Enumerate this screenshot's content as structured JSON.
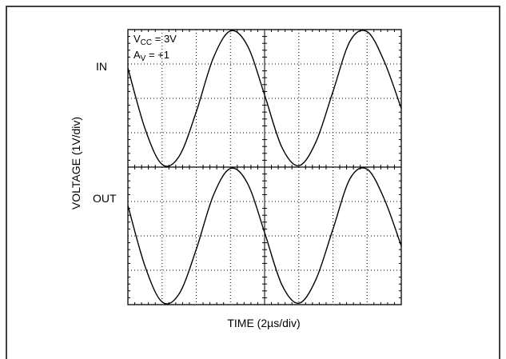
{
  "chart_data": {
    "type": "line",
    "title": "",
    "xlabel": "TIME (2µs/div)",
    "ylabel": "VOLTAGE (1V/div)",
    "grid": true,
    "x_divisions": 8,
    "y_divisions_per_panel": 4,
    "annotations": {
      "vcc_main": "V",
      "vcc_sub": "CC",
      "vcc_rest": " = 3V",
      "av_main": "A",
      "av_sub": "V",
      "av_rest": " = +1"
    },
    "panels": [
      {
        "label": "IN",
        "series": [
          {
            "x_div": [
              0,
              0.5,
              1,
              1.5,
              2,
              2.5,
              3,
              3.5,
              4,
              4.5,
              5,
              5.5,
              6,
              6.5,
              7,
              7.5,
              8
            ],
            "y_div": [
              0.45,
              -0.45,
              -0.98,
              -0.86,
              -0.2,
              0.6,
              1.0,
              0.78,
              0.05,
              -0.72,
              -1.0,
              -0.65,
              0.1,
              0.85,
              0.99,
              0.55,
              -0.15
            ]
          }
        ]
      },
      {
        "label": "OUT",
        "series": [
          {
            "x_div": [
              0,
              0.5,
              1,
              1.5,
              2,
              2.5,
              3,
              3.5,
              4,
              4.5,
              5,
              5.5,
              6,
              6.5,
              7,
              7.5,
              8
            ],
            "y_div": [
              0.45,
              -0.45,
              -0.98,
              -0.86,
              -0.2,
              0.6,
              1.0,
              0.78,
              0.05,
              -0.72,
              -1.0,
              -0.65,
              0.1,
              0.85,
              0.99,
              0.55,
              -0.15
            ]
          }
        ]
      }
    ]
  }
}
